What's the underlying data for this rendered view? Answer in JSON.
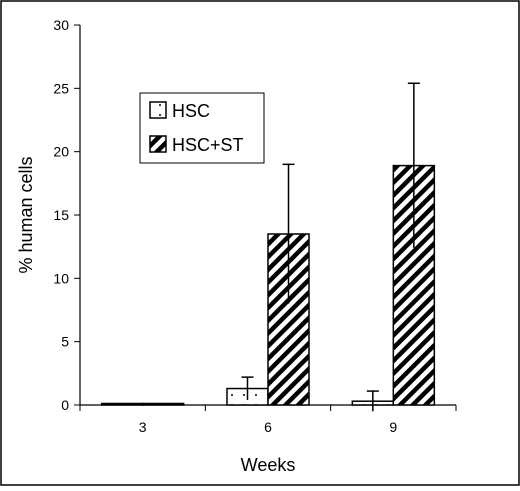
{
  "chart_data": {
    "type": "bar",
    "xlabel": "Weeks",
    "ylabel": "% human cells",
    "ylim": [
      0,
      30
    ],
    "yticks": [
      0,
      5,
      10,
      15,
      20,
      25,
      30
    ],
    "categories": [
      "3",
      "6",
      "9"
    ],
    "grid": false,
    "legend_position": "upper-left",
    "series": [
      {
        "name": "HSC",
        "pattern": "dotted",
        "values": [
          0.1,
          1.3,
          0.3
        ],
        "error": [
          0,
          0.9,
          0.8
        ]
      },
      {
        "name": "HSC+ST",
        "pattern": "diagonal-hatch",
        "values": [
          0.1,
          13.5,
          18.9
        ],
        "error": [
          0,
          5.5,
          6.5
        ]
      }
    ]
  }
}
